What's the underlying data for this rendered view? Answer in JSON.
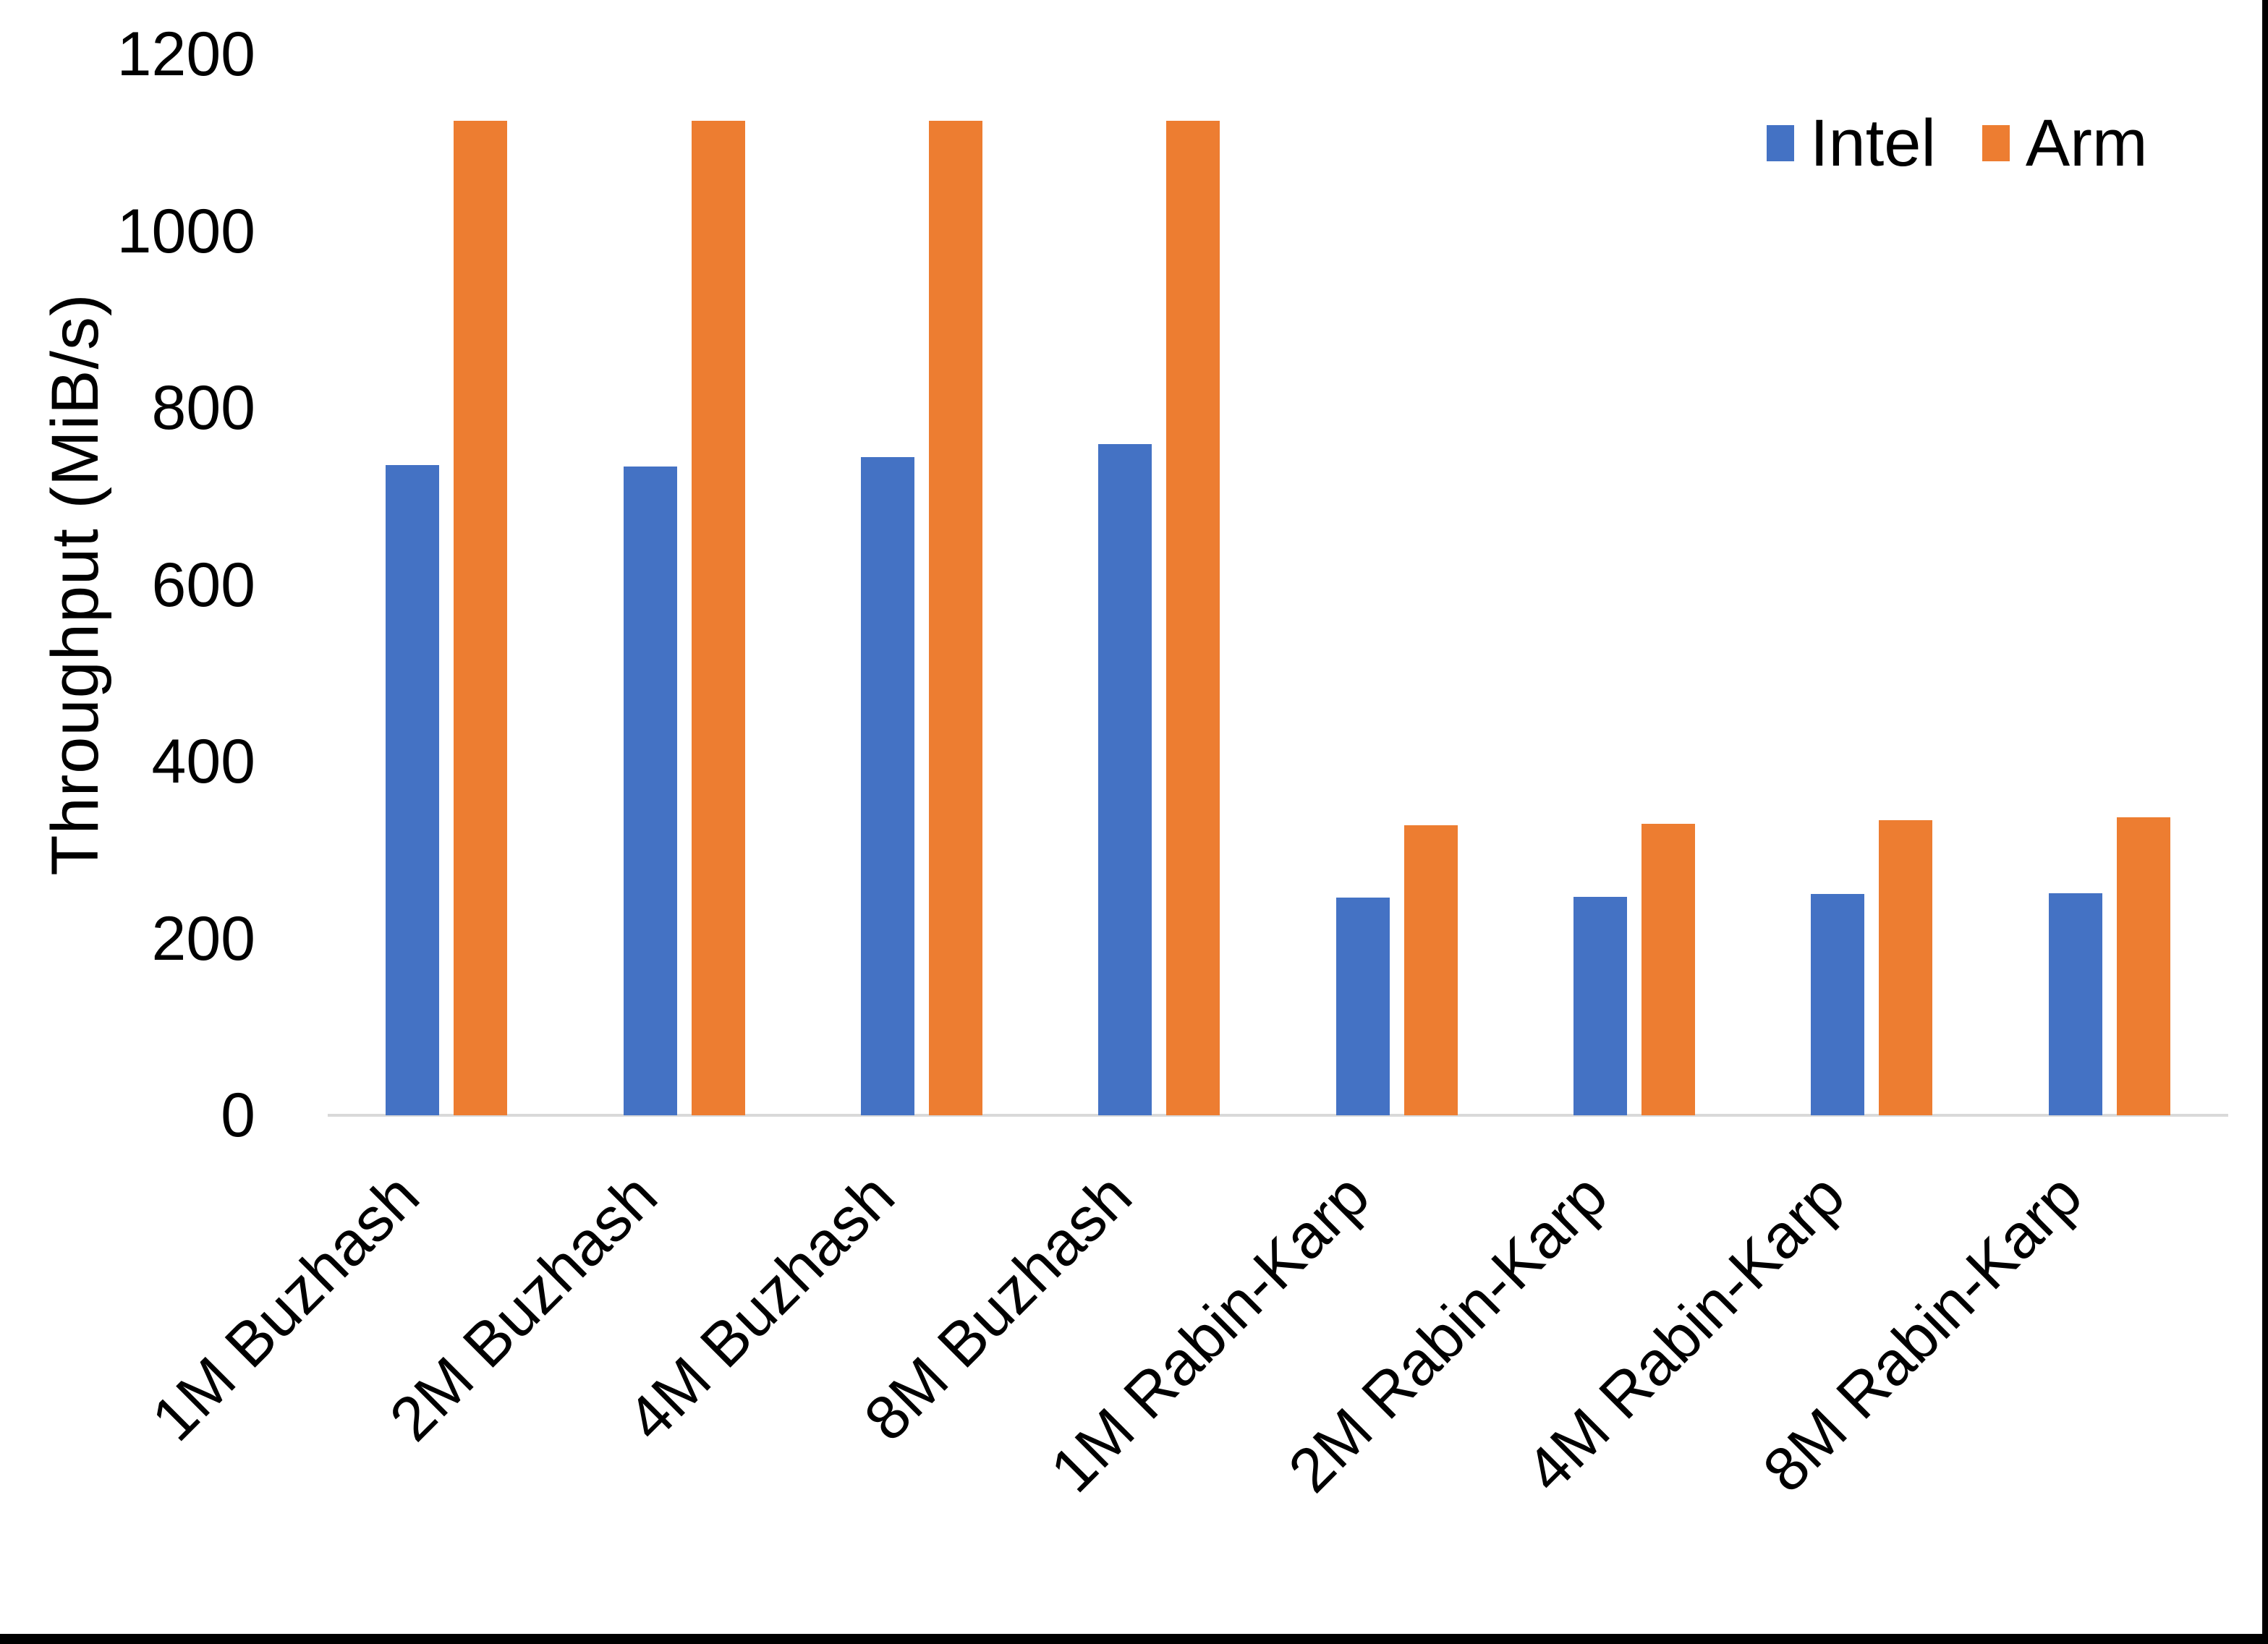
{
  "chart_data": {
    "type": "bar",
    "title": "",
    "xlabel": "",
    "ylabel": "Throughput (MiB/s)",
    "ylim": [
      0,
      1200
    ],
    "yticks": [
      0,
      200,
      400,
      600,
      800,
      1000,
      1200
    ],
    "grid": false,
    "legend_position": "top-right-inside",
    "categories": [
      "1M Buzhash",
      "2M Buzhash",
      "4M Buzhash",
      "8M Buzhash",
      "1M Rabin-Karp",
      "2M Rabin-Karp",
      "4M Rabin-Karp",
      "8M Rabin-Karp"
    ],
    "series": [
      {
        "name": "Intel",
        "color": "#4472C4",
        "values": [
          735,
          734,
          744,
          759,
          246,
          247,
          250,
          251
        ]
      },
      {
        "name": "Arm",
        "color": "#ED7D31",
        "values": [
          1125,
          1125,
          1125,
          1125,
          328,
          330,
          334,
          337
        ]
      }
    ]
  },
  "colors": {
    "background": "#FFFFFF",
    "axis_line": "#D9D9D9",
    "text": "#000000",
    "frame_border": "#000000"
  }
}
